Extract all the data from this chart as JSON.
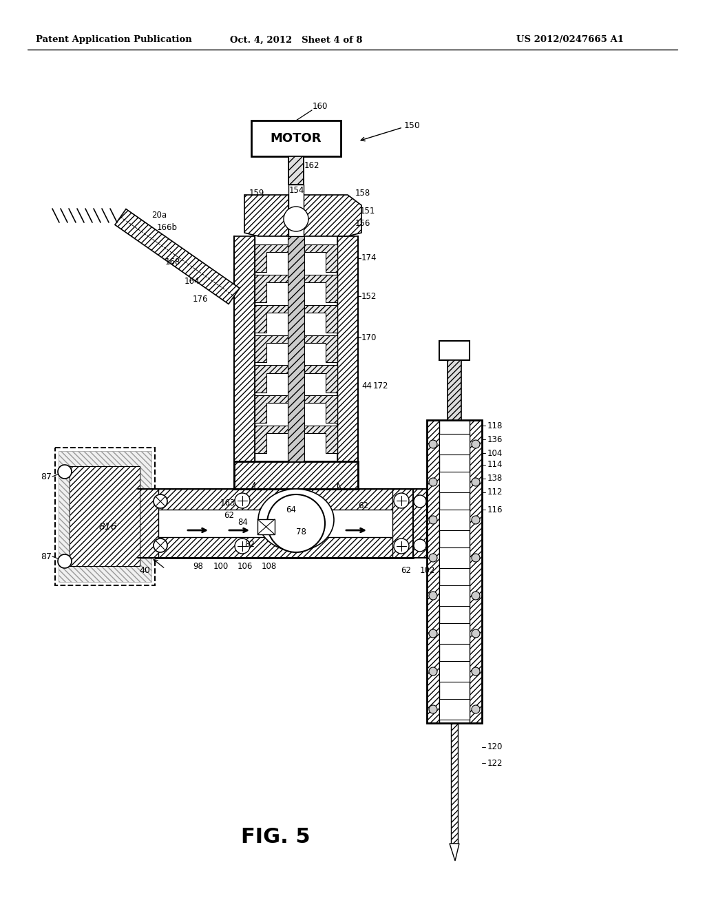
{
  "bg_color": "#ffffff",
  "header_left": "Patent Application Publication",
  "header_center": "Oct. 4, 2012   Sheet 4 of 8",
  "header_right": "US 2012/0247665 A1",
  "figure_label": "FIG. 5",
  "line_color": "#000000",
  "motor_label": "MOTOR"
}
